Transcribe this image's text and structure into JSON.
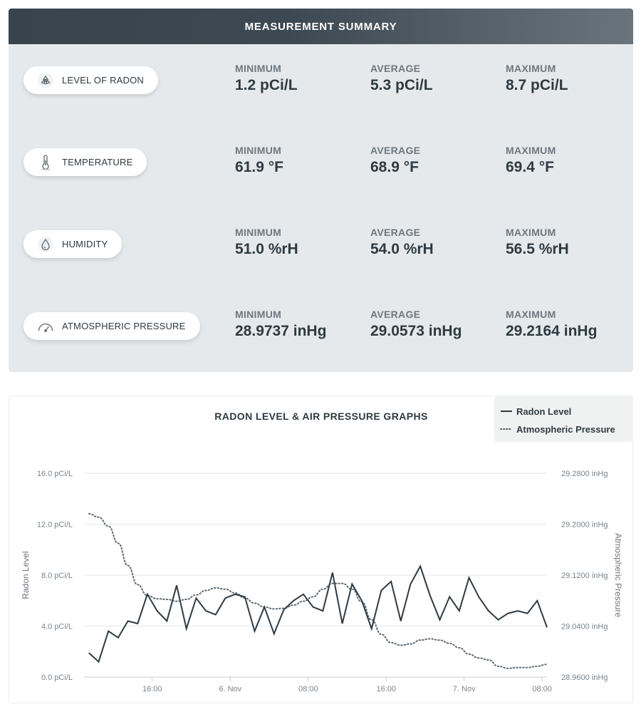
{
  "summary": {
    "title": "MEASUREMENT SUMMARY",
    "rows": [
      {
        "label": "LEVEL OF RADON",
        "icon": "radiation-icon",
        "min_label": "MINIMUM",
        "min": "1.2 pCi/L",
        "avg_label": "AVERAGE",
        "avg": "5.3 pCi/L",
        "max_label": "MAXIMUM",
        "max": "8.7 pCi/L"
      },
      {
        "label": "TEMPERATURE",
        "icon": "thermometer-icon",
        "min_label": "MINIMUM",
        "min": "61.9 °F",
        "avg_label": "AVERAGE",
        "avg": "68.9 °F",
        "max_label": "MAXIMUM",
        "max": "69.4 °F"
      },
      {
        "label": "HUMIDITY",
        "icon": "droplet-icon",
        "min_label": "MINIMUM",
        "min": "51.0 %rH",
        "avg_label": "AVERAGE",
        "avg": "54.0 %rH",
        "max_label": "MAXIMUM",
        "max": "56.5 %rH"
      },
      {
        "label": "ATMOSPHERIC PRESSURE",
        "icon": "gauge-icon",
        "min_label": "MINIMUM",
        "min": "28.9737 inHg",
        "avg_label": "AVERAGE",
        "avg": "29.0573 inHg",
        "max_label": "MAXIMUM",
        "max": "29.2164 inHg"
      }
    ]
  },
  "chart_data": {
    "type": "line",
    "title": "RADON LEVEL & AIR PRESSURE GRAPHS",
    "ylabel": "Radon Level",
    "ylabel_right": "Atmospheric Pressure",
    "ylim": [
      0,
      16
    ],
    "ylim_right": [
      28.96,
      29.28
    ],
    "yticks": [
      "0.0 pCi/L",
      "4.0 pCi/L",
      "8.0 pCi/L",
      "12.0 pCi/L",
      "16.0 pCi/L"
    ],
    "yticks_right": [
      "28.9600 inHg",
      "29.0400 inHg",
      "29.1200 inHg",
      "29.2000 inHg",
      "29.2800 inHg"
    ],
    "x_unit": "hour",
    "x_range": [
      9,
      56.5
    ],
    "xticks": [
      {
        "x": 16,
        "label": "16:00"
      },
      {
        "x": 24,
        "label": "6. Nov"
      },
      {
        "x": 32,
        "label": "08:00"
      },
      {
        "x": 40,
        "label": "16:00"
      },
      {
        "x": 48,
        "label": "7. Nov"
      },
      {
        "x": 56,
        "label": "08:00"
      }
    ],
    "legend_position": "top-right",
    "grid": true,
    "series": [
      {
        "name": "Radon Level",
        "axis": "left",
        "style": "solid",
        "color": "#2e3a42",
        "points": [
          [
            9.5,
            1.9
          ],
          [
            10.5,
            1.2
          ],
          [
            11.5,
            3.6
          ],
          [
            12.5,
            3.1
          ],
          [
            13.5,
            4.4
          ],
          [
            14.5,
            4.2
          ],
          [
            15.5,
            6.5
          ],
          [
            16.5,
            5.2
          ],
          [
            17.5,
            4.4
          ],
          [
            18.5,
            7.2
          ],
          [
            19.5,
            3.8
          ],
          [
            20.5,
            6.2
          ],
          [
            21.5,
            5.2
          ],
          [
            22.5,
            4.9
          ],
          [
            23.5,
            6.2
          ],
          [
            24.5,
            6.5
          ],
          [
            25.5,
            6.3
          ],
          [
            26.5,
            3.6
          ],
          [
            27.5,
            5.5
          ],
          [
            28.5,
            3.4
          ],
          [
            29.5,
            5.3
          ],
          [
            30.5,
            6.0
          ],
          [
            31.5,
            6.5
          ],
          [
            32.5,
            5.5
          ],
          [
            33.5,
            5.2
          ],
          [
            34.5,
            8.2
          ],
          [
            35.5,
            4.2
          ],
          [
            36.5,
            7.3
          ],
          [
            37.5,
            6.0
          ],
          [
            38.5,
            3.8
          ],
          [
            39.5,
            6.8
          ],
          [
            40.5,
            7.5
          ],
          [
            41.5,
            4.4
          ],
          [
            42.5,
            7.3
          ],
          [
            43.5,
            8.7
          ],
          [
            44.5,
            6.4
          ],
          [
            45.5,
            4.5
          ],
          [
            46.5,
            6.3
          ],
          [
            47.5,
            5.2
          ],
          [
            48.5,
            7.8
          ],
          [
            49.5,
            6.3
          ],
          [
            50.5,
            5.2
          ],
          [
            51.5,
            4.5
          ],
          [
            52.5,
            5.0
          ],
          [
            53.5,
            5.2
          ],
          [
            54.5,
            5.0
          ],
          [
            55.5,
            6.0
          ],
          [
            56.5,
            3.9
          ]
        ]
      },
      {
        "name": "Atmospheric Pressure",
        "axis": "right",
        "style": "dotted",
        "color": "#5f6a72",
        "points": [
          [
            9.5,
            29.2164
          ],
          [
            10.5,
            29.211
          ],
          [
            11.5,
            29.197
          ],
          [
            12.5,
            29.17
          ],
          [
            13.5,
            29.135
          ],
          [
            14.5,
            29.105
          ],
          [
            15.5,
            29.088
          ],
          [
            16.5,
            29.083
          ],
          [
            17.5,
            29.082
          ],
          [
            18.5,
            29.079
          ],
          [
            19.5,
            29.082
          ],
          [
            20.5,
            29.089
          ],
          [
            21.5,
            29.096
          ],
          [
            22.5,
            29.1
          ],
          [
            23.5,
            29.098
          ],
          [
            24.5,
            29.092
          ],
          [
            25.5,
            29.084
          ],
          [
            26.5,
            29.076
          ],
          [
            27.5,
            29.07
          ],
          [
            28.5,
            29.067
          ],
          [
            29.5,
            29.068
          ],
          [
            30.5,
            29.073
          ],
          [
            31.5,
            29.079
          ],
          [
            32.5,
            29.086
          ],
          [
            33.5,
            29.098
          ],
          [
            34.5,
            29.107
          ],
          [
            35.5,
            29.107
          ],
          [
            36.5,
            29.098
          ],
          [
            37.5,
            29.078
          ],
          [
            38.5,
            29.05
          ],
          [
            39.5,
            29.027
          ],
          [
            40.5,
            29.014
          ],
          [
            41.5,
            29.01
          ],
          [
            42.5,
            29.012
          ],
          [
            43.5,
            29.018
          ],
          [
            44.5,
            29.02
          ],
          [
            45.5,
            29.018
          ],
          [
            46.5,
            29.013
          ],
          [
            47.5,
            29.006
          ],
          [
            48.5,
            28.996
          ],
          [
            49.5,
            28.99
          ],
          [
            50.5,
            28.987
          ],
          [
            51.5,
            28.977
          ],
          [
            52.5,
            28.9737
          ],
          [
            53.5,
            28.975
          ],
          [
            54.5,
            28.975
          ],
          [
            55.5,
            28.977
          ],
          [
            56.5,
            28.98
          ]
        ]
      }
    ]
  }
}
